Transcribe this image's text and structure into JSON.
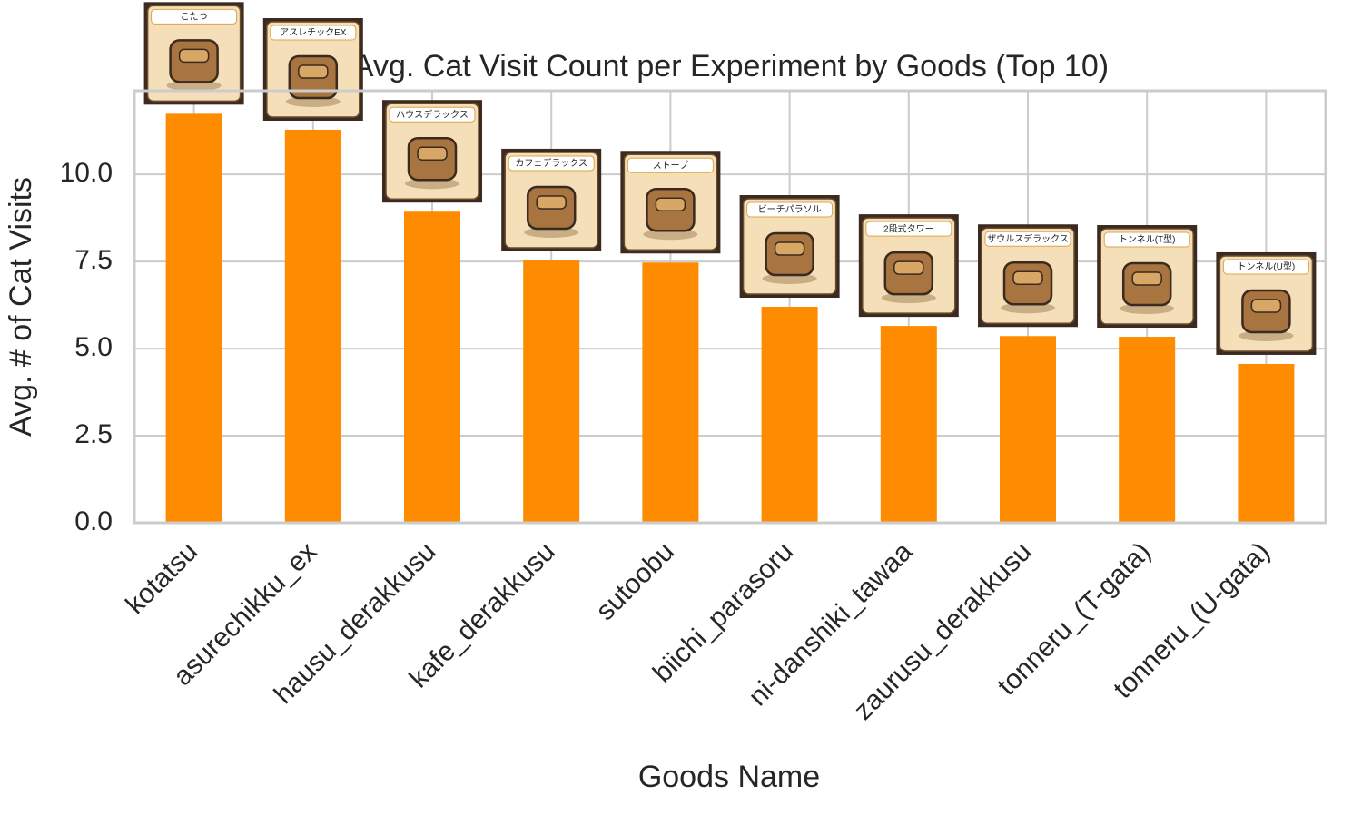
{
  "chart_data": {
    "type": "bar",
    "title": "Avg. Cat Visit Count per Experiment by Goods (Top 10)",
    "x_label": "Goods Name",
    "y_label": "Avg. # of Cat Visits",
    "categories": [
      "kotatsu",
      "asurechikku_ex",
      "hausu_derakkusu",
      "kafe_derakkusu",
      "sutoobu",
      "biichi_parasoru",
      "ni-danshiki_tawaa",
      "zaurusu_derakkusu",
      "tonneru_(T-gata)",
      "tonneru_(U-gata)"
    ],
    "values": [
      11.74,
      11.28,
      8.93,
      7.53,
      7.47,
      6.2,
      5.65,
      5.36,
      5.34,
      4.56
    ],
    "goods_labels": [
      "こたつ",
      "アスレチックEX",
      "ハウスデラックス",
      "カフェデラックス",
      "ストーブ",
      "ビーチパラソル",
      "2段式タワー",
      "ザウルスデラックス",
      "トンネル(T型)",
      "トンネル(U型)"
    ],
    "color": "#ff8c00",
    "ylim": [
      0,
      12.4
    ],
    "yticks": [
      {
        "value": 0,
        "label": "0.0"
      },
      2.5,
      {
        "value": 5,
        "label": "5.0"
      },
      7.5,
      {
        "value": 10,
        "label": "10.0"
      }
    ],
    "grid": true
  }
}
